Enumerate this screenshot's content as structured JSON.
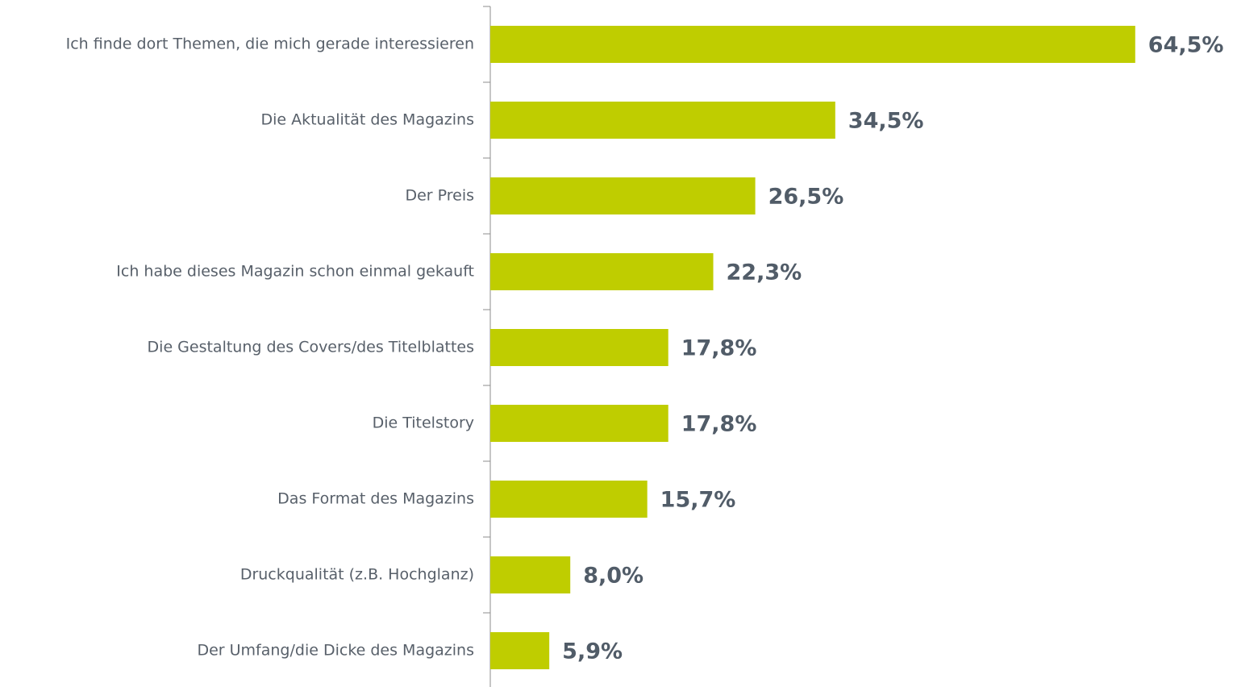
{
  "chart_data": {
    "type": "barh",
    "categories": [
      "Ich finde dort Themen, die mich gerade interessieren",
      "Die Aktualität des Magazins",
      "Der Preis",
      "Ich habe dieses Magazin schon einmal gekauft",
      "Die Gestaltung des Covers/des Titelblattes",
      "Die Titelstory",
      "Das Format des Magazins",
      "Druckqualität (z.B. Hochglanz)",
      "Der Umfang/die Dicke des Magazins"
    ],
    "values": [
      64.5,
      34.5,
      26.5,
      22.3,
      17.8,
      17.8,
      15.7,
      8.0,
      5.9
    ],
    "value_labels": [
      "64,5%",
      "34,5%",
      "26,5%",
      "22,3%",
      "17,8%",
      "17,8%",
      "15,7%",
      "8,0%",
      "5,9%"
    ],
    "color": "#bfcd00"
  }
}
